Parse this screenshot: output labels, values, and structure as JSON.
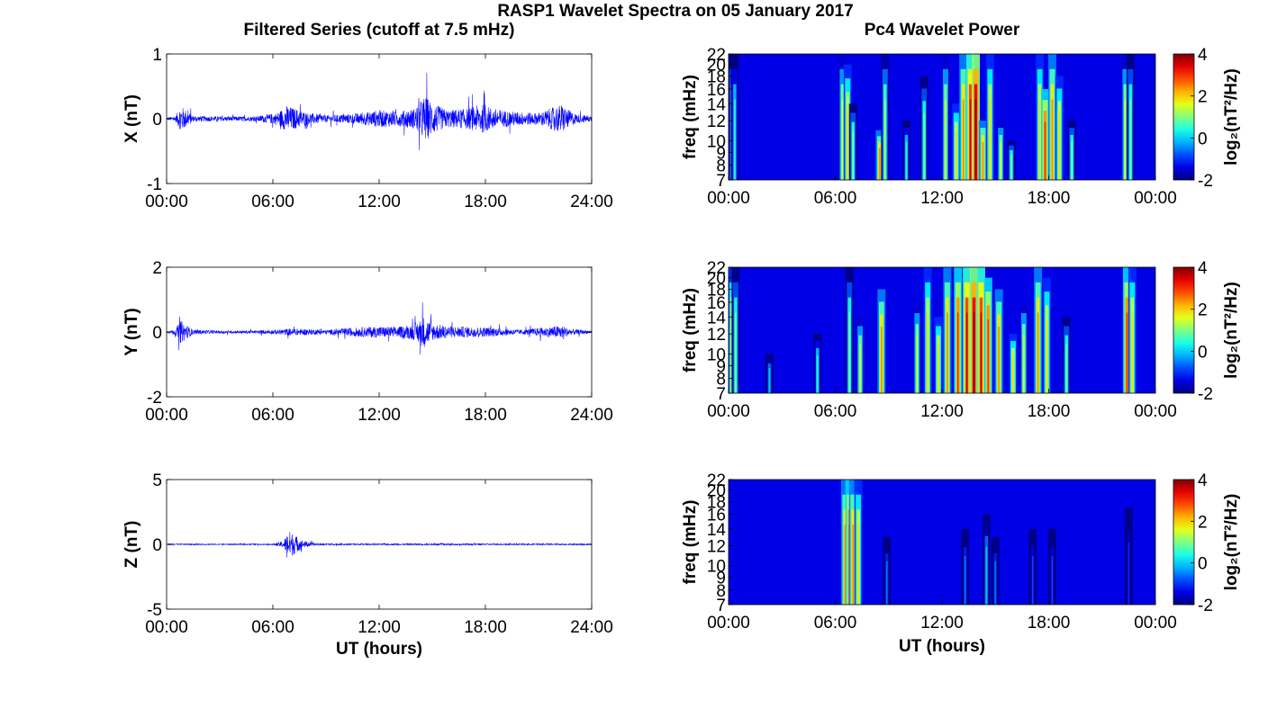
{
  "figure": {
    "title": "RASP1 Wavelet Spectra on 05 January 2017",
    "left_title": "Filtered Series (cutoff at 7.5 mHz)",
    "right_title": "Pc4 Wavelet Power"
  },
  "chart_data": [
    {
      "type": "line",
      "panel": "X",
      "ylabel": "X (nT)",
      "xlabel": "",
      "ylim": [
        -1,
        1
      ],
      "yticks": [
        "-1",
        "0",
        "1"
      ],
      "xticks": [
        "00:00",
        "06:00",
        "12:00",
        "18:00",
        "24:00"
      ],
      "xlim_hours": [
        0,
        24
      ],
      "color": "#0000ff",
      "envelope": {
        "hours": [
          0,
          0.5,
          0.8,
          1.5,
          3,
          5,
          6.2,
          6.8,
          7.3,
          8,
          9,
          10,
          11,
          12,
          13,
          14,
          14.6,
          15,
          15.8,
          17,
          17.8,
          18.5,
          19.5,
          21,
          22.3,
          22.7,
          23.2,
          24
        ],
        "amplitude_nT": [
          0.05,
          0.08,
          0.45,
          0.1,
          0.08,
          0.08,
          0.2,
          0.45,
          0.35,
          0.2,
          0.12,
          0.15,
          0.2,
          0.3,
          0.25,
          0.35,
          0.8,
          0.55,
          0.3,
          0.35,
          0.5,
          0.35,
          0.25,
          0.2,
          0.5,
          0.3,
          0.15,
          0.1
        ]
      }
    },
    {
      "type": "line",
      "panel": "Y",
      "ylabel": "Y (nT)",
      "xlabel": "",
      "ylim": [
        -2,
        2
      ],
      "yticks": [
        "-2",
        "0",
        "2"
      ],
      "xticks": [
        "00:00",
        "06:00",
        "12:00",
        "18:00",
        "24:00"
      ],
      "xlim_hours": [
        0,
        24
      ],
      "color": "#0000ff",
      "envelope": {
        "hours": [
          0,
          0.5,
          0.8,
          1.5,
          3,
          5,
          6.2,
          7,
          8,
          9,
          10.5,
          12,
          13,
          14,
          14.5,
          15,
          16,
          17.5,
          18.5,
          20,
          22.3,
          22.8,
          24
        ],
        "amplitude_nT": [
          0.05,
          0.2,
          0.8,
          0.15,
          0.1,
          0.1,
          0.15,
          0.25,
          0.2,
          0.15,
          0.3,
          0.4,
          0.35,
          0.55,
          1.1,
          0.6,
          0.4,
          0.35,
          0.3,
          0.15,
          0.45,
          0.2,
          0.1
        ]
      }
    },
    {
      "type": "line",
      "panel": "Z",
      "ylabel": "Z (nT)",
      "xlabel": "UT (hours)",
      "ylim": [
        -5,
        5
      ],
      "yticks": [
        "-5",
        "0",
        "5"
      ],
      "xticks": [
        "00:00",
        "06:00",
        "12:00",
        "18:00",
        "24:00"
      ],
      "xlim_hours": [
        0,
        24
      ],
      "color": "#0000ff",
      "envelope": {
        "hours": [
          0,
          3,
          6,
          6.6,
          6.9,
          7.3,
          7.7,
          8.5,
          12,
          15,
          18,
          24
        ],
        "amplitude_nT": [
          0.1,
          0.08,
          0.1,
          0.6,
          2.4,
          1.5,
          0.6,
          0.15,
          0.12,
          0.15,
          0.12,
          0.1
        ]
      }
    },
    {
      "type": "heatmap",
      "panel": "X",
      "ylabel": "freq (mHz)",
      "xlabel": "",
      "yticks": [
        "7",
        "8",
        "9",
        "10",
        "12",
        "14",
        "16",
        "18",
        "20",
        "22"
      ],
      "ylim_mHz": [
        7,
        22
      ],
      "xticks": [
        "00:00",
        "06:00",
        "12:00",
        "18:00",
        "00:00"
      ],
      "xlim_hours": [
        0,
        24
      ],
      "colorbar": {
        "label": "log₂(nT²/Hz)",
        "ticks": [
          "-2",
          "0",
          "2",
          "4"
        ],
        "range": [
          -2,
          4
        ],
        "colormap": "jet"
      },
      "bursts": {
        "hours": [
          0.2,
          0.35,
          6.4,
          6.7,
          7.0,
          8.5,
          8.8,
          10.0,
          11.0,
          12.2,
          12.8,
          13.2,
          13.6,
          13.9,
          14.3,
          14.7,
          15.3,
          15.9,
          17.5,
          17.8,
          18.2,
          18.6,
          19.3,
          22.3,
          22.6
        ],
        "top_mHz": [
          22,
          22,
          22,
          20,
          14,
          11,
          22,
          12,
          18,
          22,
          14,
          22,
          22,
          22,
          12,
          22,
          12,
          10,
          22,
          16,
          22,
          18,
          12,
          22,
          22
        ],
        "log2_power": [
          1.0,
          0.5,
          1.5,
          2.0,
          1.0,
          2.5,
          1.2,
          0.5,
          1.0,
          1.5,
          2.0,
          2.5,
          3.5,
          4.0,
          2.5,
          2.0,
          1.5,
          1.0,
          2.0,
          3.0,
          2.5,
          2.0,
          1.0,
          1.5,
          1.0
        ]
      }
    },
    {
      "type": "heatmap",
      "panel": "Y",
      "ylabel": "freq (mHz)",
      "xlabel": "",
      "yticks": [
        "7",
        "8",
        "9",
        "10",
        "12",
        "14",
        "16",
        "18",
        "20",
        "22"
      ],
      "ylim_mHz": [
        7,
        22
      ],
      "xticks": [
        "00:00",
        "06:00",
        "12:00",
        "18:00",
        "00:00"
      ],
      "xlim_hours": [
        0,
        24
      ],
      "colorbar": {
        "label": "log₂(nT²/Hz)",
        "ticks": [
          "-2",
          "0",
          "2",
          "4"
        ],
        "range": [
          -2,
          4
        ],
        "colormap": "jet"
      },
      "bursts": {
        "hours": [
          0.2,
          0.4,
          2.3,
          5.0,
          6.8,
          7.4,
          8.6,
          10.6,
          11.2,
          11.8,
          12.3,
          12.9,
          13.4,
          13.8,
          14.2,
          14.6,
          15.2,
          16.0,
          16.6,
          17.4,
          17.9,
          19.0,
          22.4,
          22.7
        ],
        "top_mHz": [
          22,
          22,
          10,
          12,
          22,
          14,
          18,
          16,
          22,
          14,
          22,
          22,
          22,
          22,
          22,
          20,
          18,
          12,
          16,
          22,
          20,
          14,
          22,
          22
        ],
        "log2_power": [
          2.0,
          1.0,
          0.0,
          0.5,
          1.0,
          1.5,
          2.5,
          1.5,
          2.0,
          2.0,
          2.5,
          3.0,
          3.5,
          4.0,
          3.5,
          3.0,
          2.5,
          2.0,
          1.5,
          2.5,
          2.0,
          1.0,
          3.0,
          2.0
        ]
      }
    },
    {
      "type": "heatmap",
      "panel": "Z",
      "ylabel": "freq (mHz)",
      "xlabel": "UT (hours)",
      "yticks": [
        "7",
        "8",
        "9",
        "10",
        "12",
        "14",
        "16",
        "18",
        "20",
        "22"
      ],
      "ylim_mHz": [
        7,
        22
      ],
      "xticks": [
        "00:00",
        "06:00",
        "12:00",
        "18:00",
        "00:00"
      ],
      "xlim_hours": [
        0,
        24
      ],
      "colorbar": {
        "label": "log₂(nT²/Hz)",
        "ticks": [
          "-2",
          "0",
          "2",
          "4"
        ],
        "range": [
          -2,
          4
        ],
        "colormap": "jet"
      },
      "bursts": {
        "hours": [
          6.55,
          6.8,
          7.0,
          7.3,
          8.9,
          13.3,
          14.5,
          15.0,
          17.1,
          18.2,
          22.5
        ],
        "top_mHz": [
          22,
          22,
          22,
          22,
          13,
          14,
          16,
          13,
          14,
          14,
          17
        ],
        "log2_power": [
          2.5,
          3.0,
          2.5,
          2.0,
          -0.5,
          -0.5,
          0.0,
          -0.5,
          -0.8,
          -0.8,
          -1.0
        ]
      }
    }
  ]
}
